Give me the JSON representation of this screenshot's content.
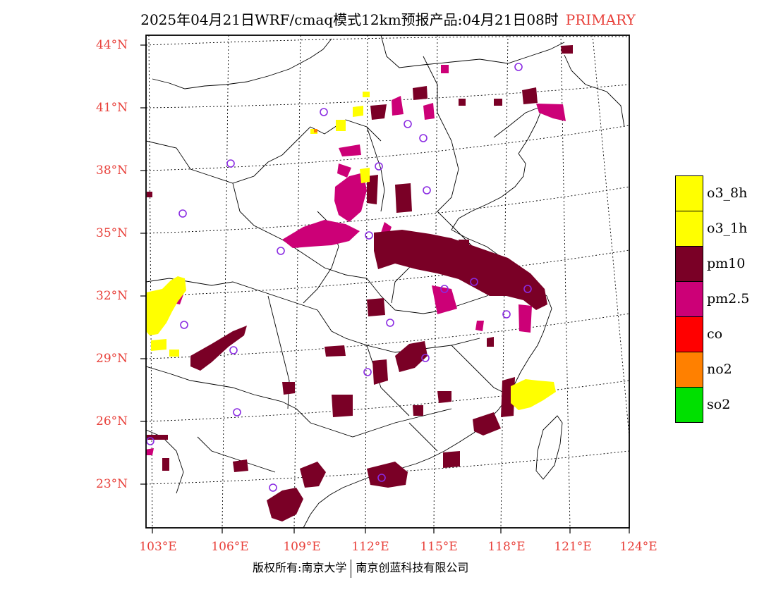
{
  "title": {
    "main": "2025年04月21日WRF/cmaq模式12km预报产品:04月21日08时",
    "tag": "PRIMARY"
  },
  "lat_labels": [
    "44°N",
    "41°N",
    "38°N",
    "35°N",
    "32°N",
    "29°N",
    "26°N",
    "23°N"
  ],
  "lon_labels": [
    "103°E",
    "106°E",
    "109°E",
    "112°E",
    "115°E",
    "118°E",
    "121°E",
    "124°E"
  ],
  "legend": [
    {
      "label": "o3_8h",
      "color": "#ffff00"
    },
    {
      "label": "o3_1h",
      "color": "#ffff00"
    },
    {
      "label": "pm10",
      "color": "#7a0026"
    },
    {
      "label": "pm2.5",
      "color": "#cc0077"
    },
    {
      "label": "co",
      "color": "#ff0000"
    },
    {
      "label": "no2",
      "color": "#ff8000"
    },
    {
      "label": "so2",
      "color": "#00e000"
    }
  ],
  "credit": {
    "left": "版权所有:南京大学",
    "right": "南京创蓝科技有限公司"
  },
  "colors": {
    "axis_label": "#e8403a",
    "pm10": "#7a0026",
    "pm25": "#cc0077",
    "o3": "#ffff00",
    "station_marker": "#8a2be2"
  }
}
